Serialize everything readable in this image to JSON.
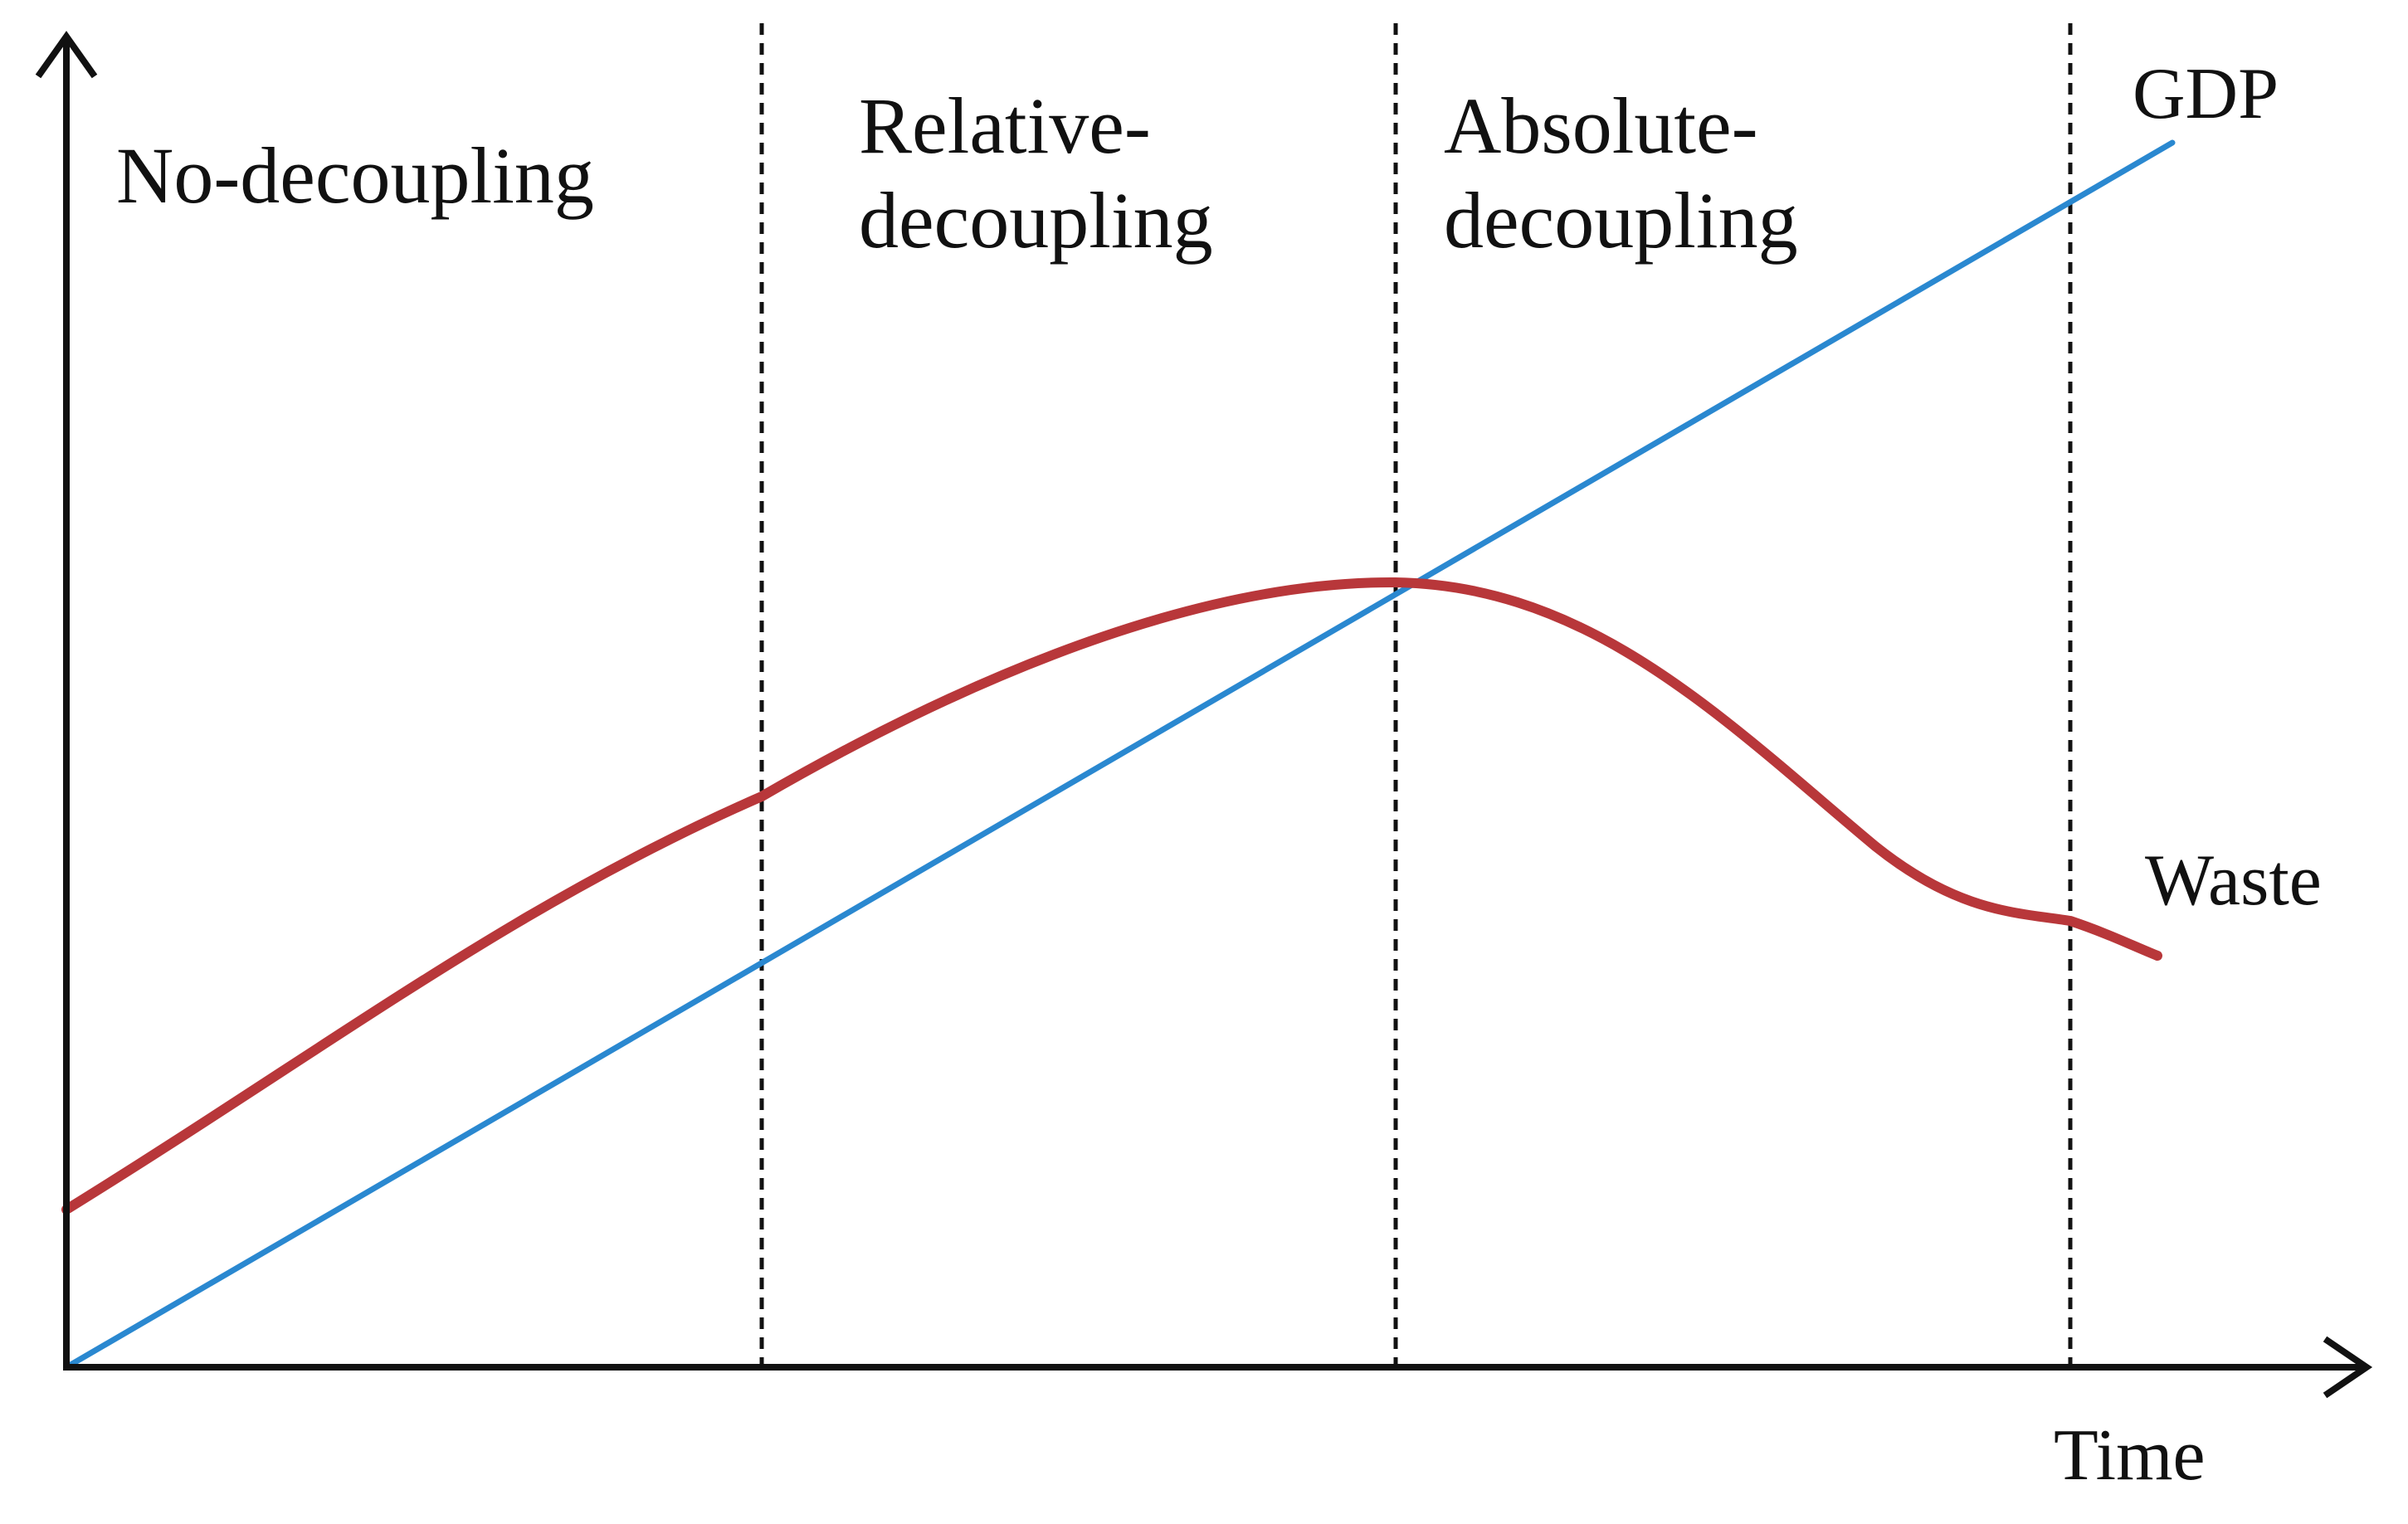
{
  "diagram": {
    "stages": [
      {
        "id": "no",
        "lines": [
          "No-decoupling"
        ]
      },
      {
        "id": "relative",
        "lines": [
          "Relative-",
          "decoupling"
        ]
      },
      {
        "id": "absolute",
        "lines": [
          "Absolute-",
          "decoupling"
        ]
      }
    ],
    "curves": {
      "gdp": {
        "label": "GDP",
        "color": "#2a88d0"
      },
      "waste": {
        "label": "Waste",
        "color": "#b8373a"
      }
    },
    "axes": {
      "x_label": "Time"
    },
    "colors": {
      "axis": "#111111",
      "divider": "#111111"
    }
  }
}
